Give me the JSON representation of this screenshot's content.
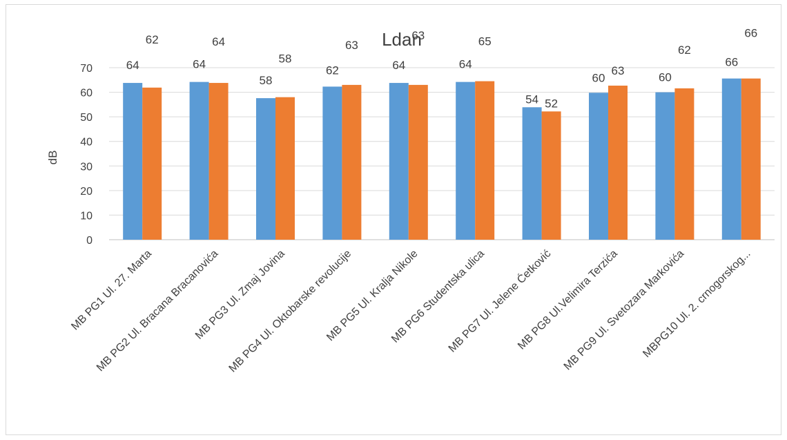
{
  "chart_data": {
    "type": "bar",
    "title": "Ldan",
    "ylabel": "dB",
    "xlabel": "",
    "ylim": [
      0,
      70
    ],
    "yticks": [
      0,
      10,
      20,
      30,
      40,
      50,
      60,
      70
    ],
    "grid": true,
    "legend": "none",
    "categories": [
      "MB PG1 Ul. 27. Marta",
      "MB PG2 Ul. Bracana Bracanovića",
      "MB PG3 Ul. Zmaj Jovina",
      "MB PG4 Ul. Oktobarske revolucije",
      "MB PG5 Ul. Kralja Nikole",
      "MB PG6 Studentska ulica",
      "MB PG7  Ul. Jelene Ćetković",
      "MB PG8 Ul.Velimira Terzića",
      "MB PG9 Ul. Svetozara Markovića",
      "MBPG10 Ul. 2. crnogorskog..."
    ],
    "series": [
      {
        "color": "#5b9bd5",
        "values": [
          63.8,
          64.2,
          57.6,
          62.3,
          63.8,
          64.2,
          53.9,
          59.8,
          60.0,
          65.6
        ],
        "labels": [
          "64",
          "64",
          "58",
          "62",
          "64",
          "64",
          "54",
          "60",
          "60",
          "66"
        ]
      },
      {
        "color": "#ed7d31",
        "values": [
          61.9,
          63.8,
          58.0,
          63.0,
          63.0,
          64.5,
          52.2,
          62.7,
          61.6,
          65.6
        ],
        "labels": [
          "62",
          "64",
          "58",
          "63",
          "63",
          "65",
          "52",
          "63",
          "62",
          "66"
        ]
      }
    ]
  }
}
